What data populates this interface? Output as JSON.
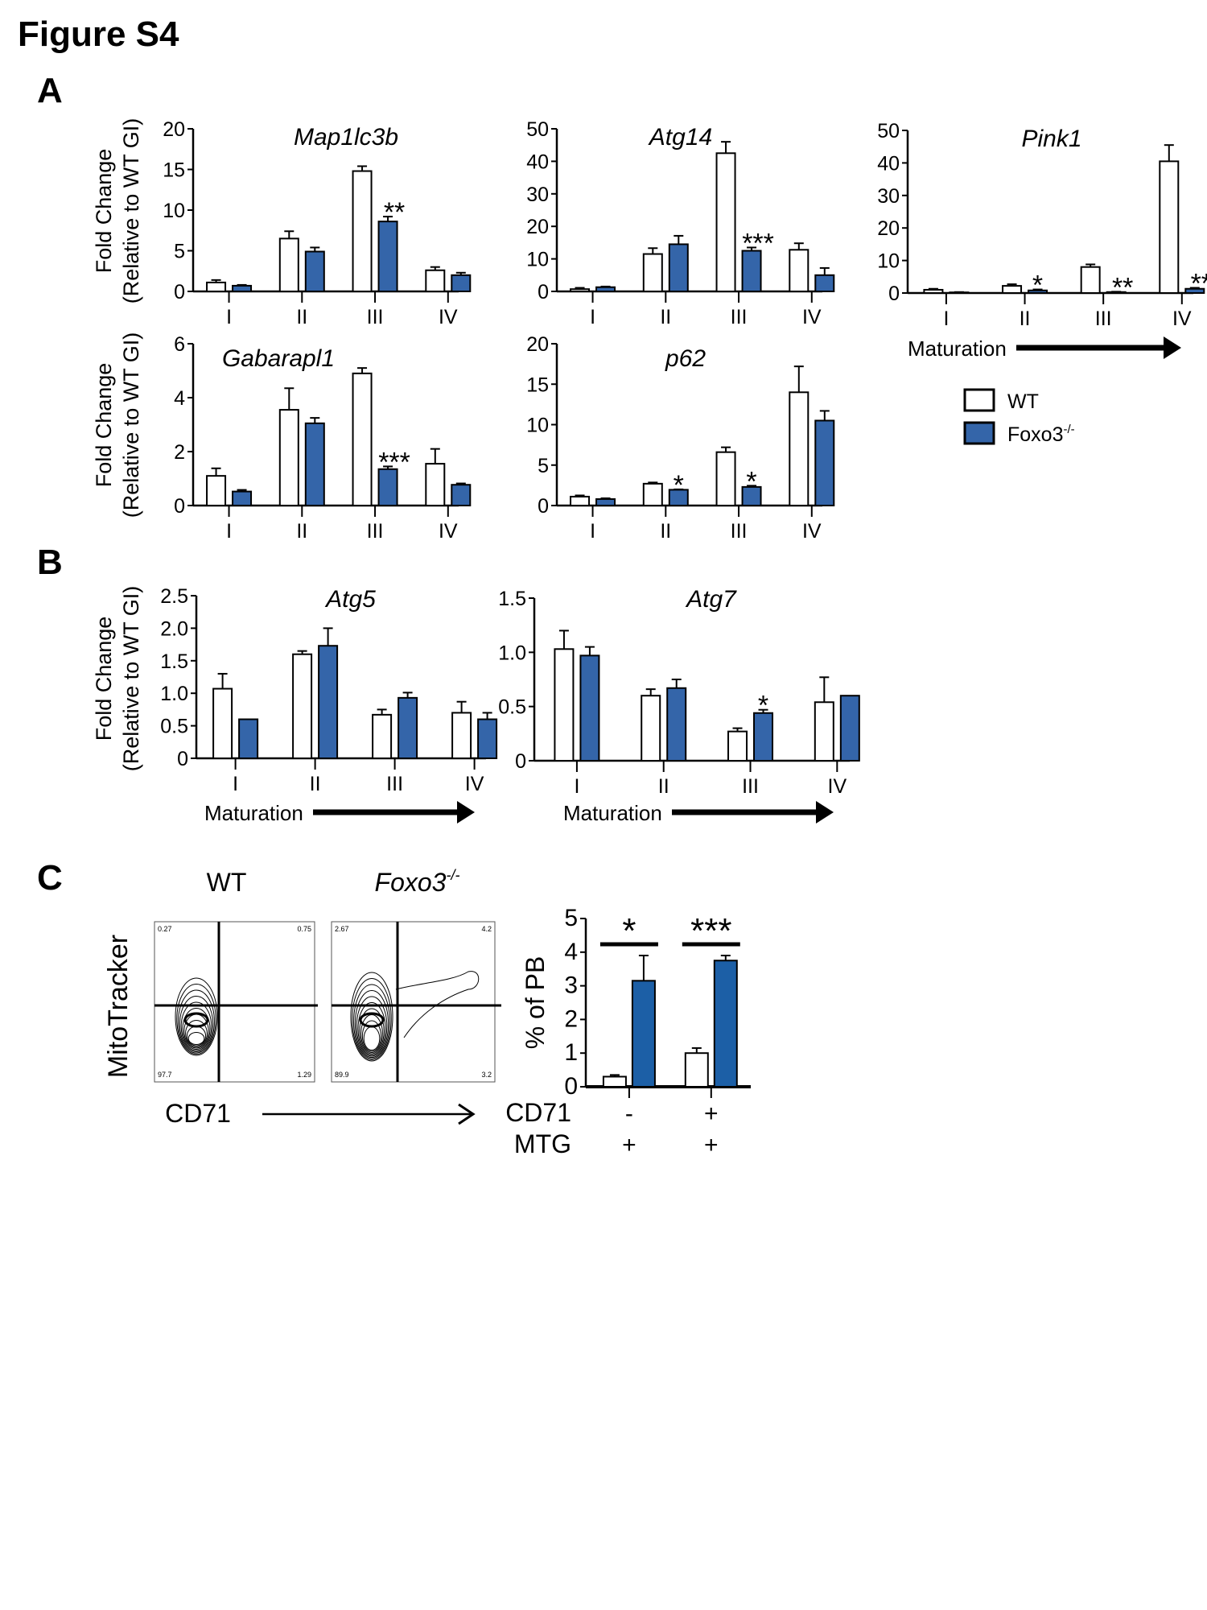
{
  "figure_title": "Figure S4",
  "panels": {
    "A": "A",
    "B": "B",
    "C": "C"
  },
  "colors": {
    "wt": "#ffffff",
    "ko": "#3465a9",
    "ko_c": "#1c5fa6",
    "axis": "#000000"
  },
  "legend": {
    "wt": {
      "label": "WT"
    },
    "ko": {
      "label": "Foxo3",
      "sup": "-/-"
    }
  },
  "maturation_label": "Maturation",
  "y_label_line1": "Fold Change",
  "y_label_line2": "(Relative to WT GI)",
  "chart_data": [
    {
      "type": "bar",
      "panel": "A",
      "title": "Map1lc3b",
      "categories": [
        "I",
        "II",
        "III",
        "IV"
      ],
      "ylim": [
        0,
        20
      ],
      "yticks": [
        0,
        5,
        10,
        15,
        20
      ],
      "series": [
        {
          "name": "WT",
          "values": [
            1.1,
            6.5,
            14.8,
            2.6
          ],
          "errors": [
            0.3,
            0.9,
            0.6,
            0.4
          ]
        },
        {
          "name": "Foxo3-/-",
          "values": [
            0.7,
            4.9,
            8.6,
            2.0
          ],
          "errors": [
            0.1,
            0.5,
            0.6,
            0.3
          ]
        }
      ],
      "significance": [
        "",
        "",
        "**",
        ""
      ]
    },
    {
      "type": "bar",
      "panel": "A",
      "title": "Atg14",
      "categories": [
        "I",
        "II",
        "III",
        "IV"
      ],
      "ylim": [
        0,
        50
      ],
      "yticks": [
        0,
        10,
        20,
        30,
        40,
        50
      ],
      "series": [
        {
          "name": "WT",
          "values": [
            0.7,
            11.5,
            42.5,
            12.8
          ],
          "errors": [
            0.4,
            1.8,
            3.5,
            2.0
          ]
        },
        {
          "name": "Foxo3-/-",
          "values": [
            1.3,
            14.5,
            12.5,
            5.0
          ],
          "errors": [
            0.2,
            2.6,
            1.0,
            2.2
          ]
        }
      ],
      "significance": [
        "",
        "",
        "***",
        ""
      ]
    },
    {
      "type": "bar",
      "panel": "A",
      "title": "Pink1",
      "categories": [
        "I",
        "II",
        "III",
        "IV"
      ],
      "ylim": [
        0,
        50
      ],
      "yticks": [
        0,
        10,
        20,
        30,
        40,
        50
      ],
      "series": [
        {
          "name": "WT",
          "values": [
            1.0,
            2.2,
            8.0,
            40.5
          ],
          "errors": [
            0.3,
            0.5,
            0.8,
            5.0
          ]
        },
        {
          "name": "Foxo3-/-",
          "values": [
            0.2,
            0.8,
            0.3,
            1.3
          ],
          "errors": [
            0.1,
            0.3,
            0.1,
            0.3
          ]
        }
      ],
      "significance": [
        "",
        "*",
        "**",
        "**"
      ]
    },
    {
      "type": "bar",
      "panel": "A",
      "title": "Gabarapl1",
      "categories": [
        "I",
        "II",
        "III",
        "IV"
      ],
      "ylim": [
        0,
        6
      ],
      "yticks": [
        0,
        2,
        4,
        6
      ],
      "series": [
        {
          "name": "WT",
          "values": [
            1.1,
            3.55,
            4.9,
            1.55
          ],
          "errors": [
            0.28,
            0.8,
            0.2,
            0.55
          ]
        },
        {
          "name": "Foxo3-/-",
          "values": [
            0.52,
            3.05,
            1.35,
            0.77
          ],
          "errors": [
            0.06,
            0.2,
            0.1,
            0.05
          ]
        }
      ],
      "significance": [
        "",
        "",
        "***",
        ""
      ]
    },
    {
      "type": "bar",
      "panel": "A",
      "title": "p62",
      "categories": [
        "I",
        "II",
        "III",
        "IV"
      ],
      "ylim": [
        0,
        20
      ],
      "yticks": [
        0,
        5,
        10,
        15,
        20
      ],
      "series": [
        {
          "name": "WT",
          "values": [
            1.1,
            2.7,
            6.6,
            14.0
          ],
          "errors": [
            0.15,
            0.15,
            0.6,
            3.2
          ]
        },
        {
          "name": "Foxo3-/-",
          "values": [
            0.8,
            1.95,
            2.3,
            10.5
          ],
          "errors": [
            0.1,
            0.05,
            0.15,
            1.2
          ]
        }
      ],
      "significance": [
        "",
        "*",
        "*",
        ""
      ]
    },
    {
      "type": "bar",
      "panel": "B",
      "title": "Atg5",
      "categories": [
        "I",
        "II",
        "III",
        "IV"
      ],
      "ylim": [
        0,
        2.5
      ],
      "yticks": [
        "0",
        "0.5",
        "1.0",
        "1.5",
        "2.0",
        "2.5"
      ],
      "series": [
        {
          "name": "WT",
          "values": [
            1.07,
            1.6,
            0.67,
            0.7
          ],
          "errors": [
            0.23,
            0.05,
            0.08,
            0.17
          ]
        },
        {
          "name": "Foxo3-/-",
          "values": [
            0.6,
            1.73,
            0.93,
            0.6
          ],
          "errors": [
            0,
            0.27,
            0.08,
            0.1
          ]
        }
      ],
      "significance": [
        "",
        "",
        "",
        ""
      ]
    },
    {
      "type": "bar",
      "panel": "B",
      "title": "Atg7",
      "categories": [
        "I",
        "II",
        "III",
        "IV"
      ],
      "ylim": [
        0,
        1.5
      ],
      "yticks": [
        "0",
        "0.5",
        "1.0",
        "1.5"
      ],
      "series": [
        {
          "name": "WT",
          "values": [
            1.03,
            0.6,
            0.27,
            0.54
          ],
          "errors": [
            0.17,
            0.06,
            0.03,
            0.23
          ]
        },
        {
          "name": "Foxo3-/-",
          "values": [
            0.97,
            0.67,
            0.44,
            0.6
          ],
          "errors": [
            0.08,
            0.08,
            0.03,
            0
          ]
        }
      ],
      "significance": [
        "",
        "",
        "*",
        ""
      ]
    },
    {
      "type": "bar",
      "panel": "C",
      "title": "",
      "ylabel": "% of PB",
      "ylim": [
        0,
        5
      ],
      "yticks": [
        0,
        1,
        2,
        3,
        4,
        5
      ],
      "row_labels": [
        {
          "label": "CD71",
          "values": [
            "-",
            "+"
          ]
        },
        {
          "label": "MTG",
          "values": [
            "+",
            "+"
          ]
        }
      ],
      "series": [
        {
          "name": "WT",
          "values": [
            0.3,
            1.0
          ],
          "errors": [
            0.05,
            0.15
          ]
        },
        {
          "name": "Foxo3-/-",
          "values": [
            3.15,
            3.75
          ],
          "errors": [
            0.75,
            0.15
          ]
        }
      ],
      "significance": [
        "*",
        "***"
      ]
    }
  ],
  "flow": {
    "y_label": "MitoTracker",
    "x_label": "CD71",
    "plots": [
      {
        "title": "WT",
        "italic": false,
        "sup": "",
        "quadrants": {
          "ul": "0.27",
          "ur": "0.75",
          "ll": "97.7",
          "lr": "1.29"
        }
      },
      {
        "title": "Foxo3",
        "italic": true,
        "sup": "-/-",
        "quadrants": {
          "ul": "2.67",
          "ur": "4.2",
          "ll": "89.9",
          "lr": "3.2"
        }
      }
    ]
  }
}
